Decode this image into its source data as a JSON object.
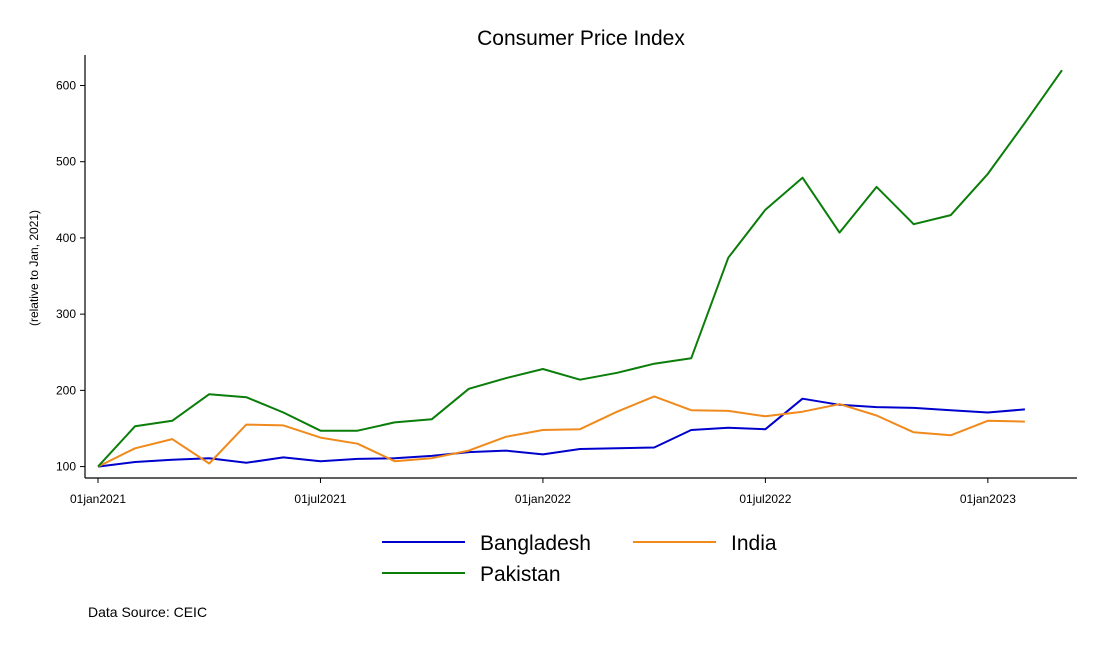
{
  "chart_data": {
    "type": "line",
    "title": "Consumer Price Index",
    "subtitle": "",
    "xlabel": "",
    "ylabel": "(relative to Jan, 2021)",
    "x": [
      "2021-01",
      "2021-02",
      "2021-03",
      "2021-04",
      "2021-05",
      "2021-06",
      "2021-07",
      "2021-08",
      "2021-09",
      "2021-10",
      "2021-11",
      "2021-12",
      "2022-01",
      "2022-02",
      "2022-03",
      "2022-04",
      "2022-05",
      "2022-06",
      "2022-07",
      "2022-08",
      "2022-09",
      "2022-10",
      "2022-11",
      "2022-12",
      "2023-01",
      "2023-02",
      "2023-03"
    ],
    "xticks": [
      {
        "value": "2021-01",
        "label": "01jan2021"
      },
      {
        "value": "2021-07",
        "label": "01jul2021"
      },
      {
        "value": "2022-01",
        "label": "01jan2022"
      },
      {
        "value": "2022-07",
        "label": "01jul2022"
      },
      {
        "value": "2023-01",
        "label": "01jan2023"
      }
    ],
    "xlim": [
      "2021-01",
      "2023-03"
    ],
    "ylim": [
      85,
      640
    ],
    "yticks": [
      100,
      200,
      300,
      400,
      500,
      600
    ],
    "grid": false,
    "legend_position": "bottom",
    "series": [
      {
        "name": "Bangladesh",
        "color": "#0000cc",
        "values": [
          100,
          106,
          109,
          111,
          105,
          112,
          107,
          110,
          111,
          114,
          119,
          121,
          116,
          123,
          124,
          125,
          148,
          151,
          149,
          189,
          181,
          178,
          177,
          174,
          171,
          175,
          null
        ]
      },
      {
        "name": "India",
        "color": "#f08a1c",
        "values": [
          100,
          124,
          136,
          104,
          155,
          154,
          138,
          130,
          107,
          111,
          121,
          139,
          148,
          149,
          172,
          192,
          174,
          173,
          166,
          172,
          182,
          167,
          145,
          141,
          160,
          159,
          null
        ]
      },
      {
        "name": "Pakistan",
        "color": "#0a7d0a",
        "values": [
          100,
          153,
          160,
          195,
          191,
          171,
          147,
          147,
          158,
          162,
          202,
          216,
          228,
          214,
          223,
          235,
          242,
          374,
          437,
          479,
          407,
          467,
          418,
          430,
          484,
          551,
          620
        ]
      }
    ],
    "source_note": "Data Source: CEIC"
  }
}
